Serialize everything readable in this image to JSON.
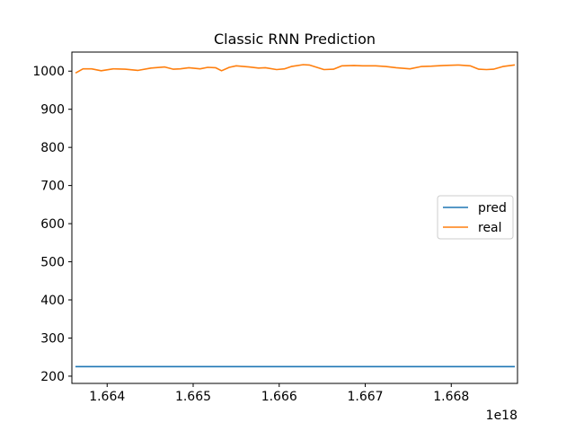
{
  "chart_data": {
    "type": "line",
    "title": "Classic RNN Prediction",
    "xlabel": "",
    "ylabel": "",
    "x_offset_label": "1e18",
    "xlim": [
      1.66359,
      1.66877
    ],
    "ylim": [
      181,
      1050
    ],
    "x_ticks": [
      1.664,
      1.665,
      1.666,
      1.667,
      1.668
    ],
    "x_tick_labels": [
      "1.664",
      "1.665",
      "1.666",
      "1.667",
      "1.668"
    ],
    "y_ticks": [
      200,
      300,
      400,
      500,
      600,
      700,
      800,
      900,
      1000
    ],
    "y_tick_labels": [
      "200",
      "300",
      "400",
      "500",
      "600",
      "700",
      "800",
      "900",
      "1000"
    ],
    "grid": false,
    "legend_position": "center-right",
    "series": [
      {
        "name": "pred",
        "color": "#1f77b4",
        "x": [
          1.66364,
          1.66873
        ],
        "y": [
          225,
          225
        ]
      },
      {
        "name": "real",
        "color": "#ff7f0e",
        "x": [
          1.66364,
          1.66372,
          1.66382,
          1.66393,
          1.66407,
          1.66421,
          1.66436,
          1.66451,
          1.66467,
          1.66477,
          1.66485,
          1.66495,
          1.66508,
          1.66517,
          1.66526,
          1.66533,
          1.66542,
          1.6655,
          1.66565,
          1.66576,
          1.66584,
          1.66597,
          1.66606,
          1.66614,
          1.66628,
          1.66635,
          1.66652,
          1.66663,
          1.66673,
          1.66687,
          1.66697,
          1.66712,
          1.66724,
          1.66736,
          1.66752,
          1.66765,
          1.66777,
          1.66791,
          1.66809,
          1.66822,
          1.66832,
          1.66841,
          1.66849,
          1.6686,
          1.66873
        ],
        "y": [
          996,
          1006,
          1006,
          1001,
          1006,
          1005,
          1002,
          1008,
          1011,
          1005,
          1006,
          1009,
          1006,
          1010,
          1009,
          1001,
          1010,
          1014,
          1011,
          1008,
          1009,
          1004,
          1006,
          1012,
          1017,
          1016,
          1004,
          1005,
          1014,
          1015,
          1014,
          1014,
          1012,
          1009,
          1006,
          1012,
          1013,
          1015,
          1016,
          1014,
          1005,
          1004,
          1005,
          1012,
          1016
        ]
      }
    ]
  }
}
